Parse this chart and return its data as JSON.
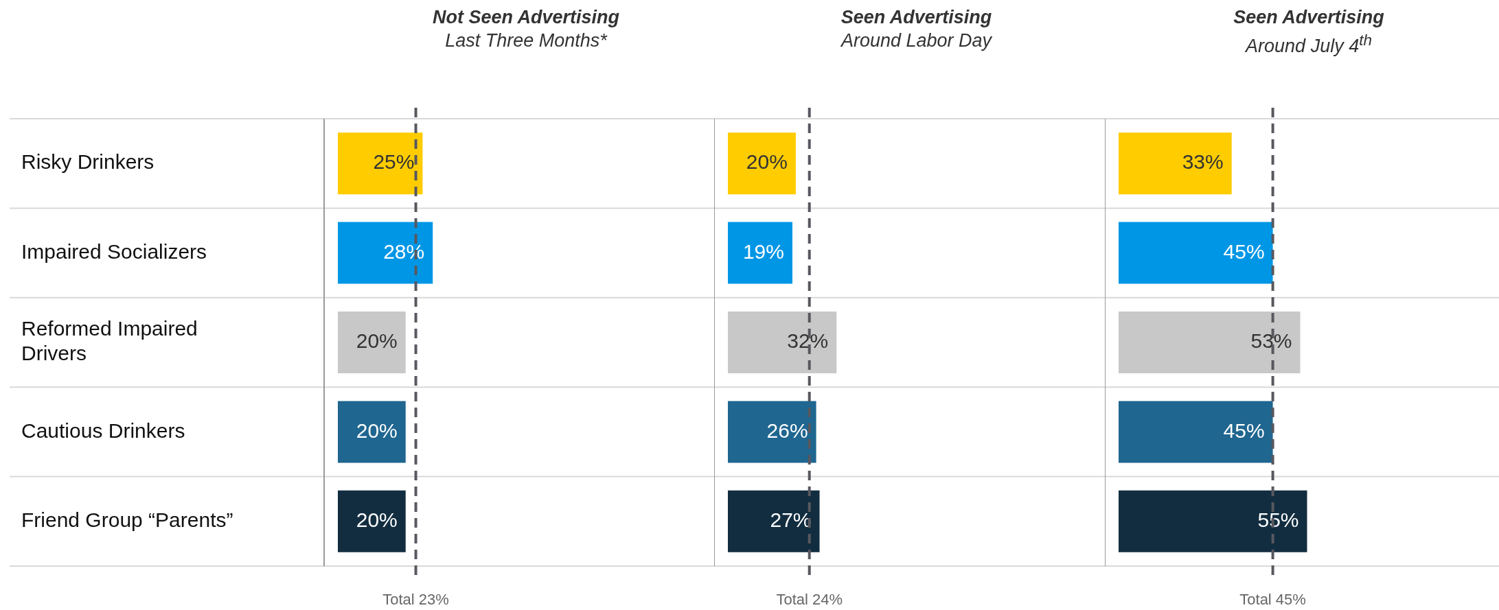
{
  "chart_data": [
    {
      "type": "bar",
      "orientation": "horizontal",
      "title": "Not Seen Advertising",
      "subtitle": "Last Three Months*",
      "categories": [
        "Risky Drinkers",
        "Impaired Socializers",
        "Reformed Impaired Drivers",
        "Cautious Drinkers",
        "Friend Group “Parents”"
      ],
      "values": [
        25,
        28,
        20,
        20,
        20
      ],
      "value_labels": [
        "25%",
        "28%",
        "20%",
        "20%",
        "20%"
      ],
      "colors": [
        "#ffcc00",
        "#0096e6",
        "#c8c8c8",
        "#1f6690",
        "#122d40"
      ],
      "xlim": [
        0,
        111
      ],
      "ref_lines": [
        {
          "axis": "x",
          "value": 23,
          "label": "Total 23%",
          "color": "#58585f",
          "line_style": "dashed"
        }
      ],
      "grid": "y",
      "tick_labels": "y",
      "legend": false
    },
    {
      "type": "bar",
      "orientation": "horizontal",
      "title": "Seen Advertising",
      "subtitle": "Around Labor Day",
      "categories": [
        null,
        null,
        null,
        null,
        null
      ],
      "values": [
        20,
        19,
        32,
        26,
        27
      ],
      "value_labels": [
        "20%",
        "19%",
        "32%",
        "26%",
        "27%"
      ],
      "colors": [
        "#ffcc00",
        "#0096e6",
        "#c8c8c8",
        "#1f6690",
        "#122d40"
      ],
      "xlim": [
        0,
        111
      ],
      "ref_lines": [
        {
          "axis": "x",
          "value": 24,
          "label": "Total 24%",
          "color": "#58585f",
          "line_style": "dashed"
        }
      ],
      "grid": "y",
      "tick_labels": false,
      "legend": false
    },
    {
      "type": "bar",
      "orientation": "horizontal",
      "title": "Seen Advertising",
      "subtitle": "Around July 4$^{th}$",
      "categories": [
        null,
        null,
        null,
        null,
        null
      ],
      "values": [
        33,
        45,
        53,
        45,
        55
      ],
      "value_labels": [
        "33%",
        "45%",
        "53%",
        "45%",
        "55%"
      ],
      "colors": [
        "#ffcc00",
        "#0096e6",
        "#c8c8c8",
        "#1f6690",
        "#122d40"
      ],
      "xlim": [
        0,
        111
      ],
      "ref_lines": [
        {
          "axis": "x",
          "value": 45,
          "label": "Total 45%",
          "color": "#58585f",
          "line_style": "dashed"
        }
      ],
      "grid": "y",
      "tick_labels": false,
      "legend": false
    }
  ]
}
